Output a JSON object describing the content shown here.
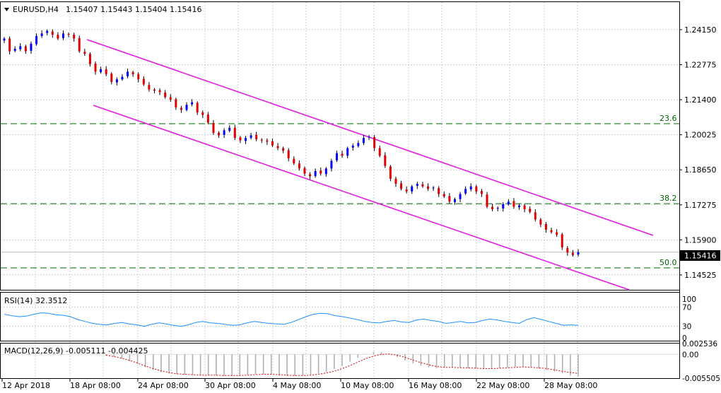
{
  "header": {
    "symbol": "EURUSD,H4",
    "ohlc": "1.15407 1.15443 1.15404 1.15416"
  },
  "colors": {
    "bull": "#0000ff",
    "bear": "#e00000",
    "wick": "#000000",
    "channel": "#e020e0",
    "fib": "#006400",
    "grid": "#c9cfd6",
    "rsi": "#1e90ff",
    "macd_hist": "#b0b0b0",
    "macd_signal": "#e00000",
    "price_box": "#000000"
  },
  "chart_data": [
    {
      "type": "candlestick",
      "title": "EURUSD,H4",
      "x_ticks": [
        "12 Apr 2018",
        "18 Apr 08:00",
        "24 Apr 08:00",
        "30 Apr 08:00",
        "4 May 08:00",
        "10 May 08:00",
        "16 May 08:00",
        "22 May 08:00",
        "28 May 08:00"
      ],
      "y_ticks": [
        "1.24150",
        "1.22775",
        "1.21400",
        "1.20025",
        "1.18650",
        "1.17275",
        "1.15900",
        "1.14525"
      ],
      "ylim": [
        1.1394,
        1.2523
      ],
      "last_price": "1.15416",
      "fib_levels": [
        {
          "label": "23.6",
          "value": 1.2046
        },
        {
          "label": "38.2",
          "value": 1.1732
        },
        {
          "label": "50.0",
          "value": 1.148
        }
      ],
      "close_series": [
        1.238,
        1.233,
        1.234,
        1.235,
        1.233,
        1.236,
        1.239,
        1.24,
        1.241,
        1.2395,
        1.238,
        1.24,
        1.2395,
        1.238,
        1.233,
        1.232,
        1.228,
        1.225,
        1.226,
        1.224,
        1.221,
        1.222,
        1.223,
        1.225,
        1.224,
        1.222,
        1.22,
        1.218,
        1.2175,
        1.217,
        1.215,
        1.214,
        1.211,
        1.21,
        1.212,
        1.213,
        1.209,
        1.208,
        1.205,
        1.201,
        1.2,
        1.202,
        1.203,
        1.199,
        1.198,
        1.199,
        1.2,
        1.1985,
        1.198,
        1.1975,
        1.196,
        1.195,
        1.194,
        1.191,
        1.189,
        1.187,
        1.185,
        1.184,
        1.186,
        1.185,
        1.187,
        1.19,
        1.193,
        1.192,
        1.195,
        1.196,
        1.197,
        1.199,
        1.1995,
        1.195,
        1.192,
        1.188,
        1.183,
        1.181,
        1.179,
        1.178,
        1.18,
        1.181,
        1.18,
        1.179,
        1.1795,
        1.177,
        1.176,
        1.174,
        1.175,
        1.177,
        1.179,
        1.18,
        1.178,
        1.177,
        1.172,
        1.171,
        1.1715,
        1.173,
        1.174,
        1.172,
        1.1725,
        1.171,
        1.17,
        1.167,
        1.165,
        1.163,
        1.162,
        1.161,
        1.156,
        1.154,
        1.153,
        1.1541
      ]
    },
    {
      "type": "line",
      "title": "RSI(14) 32.3512",
      "y_ticks": [
        "100",
        "70",
        "30",
        "0"
      ],
      "ylim": [
        0,
        100
      ],
      "values": [
        55,
        52,
        50,
        51,
        55,
        58,
        57,
        54,
        53,
        50,
        44,
        40,
        36,
        34,
        33,
        36,
        38,
        35,
        33,
        30,
        34,
        37,
        35,
        32,
        30,
        33,
        38,
        40,
        37,
        36,
        34,
        32,
        33,
        37,
        40,
        38,
        36,
        35,
        34,
        38,
        44,
        50,
        55,
        57,
        56,
        52,
        50,
        47,
        44,
        40,
        38,
        37,
        40,
        42,
        39,
        38,
        43,
        45,
        42,
        40,
        36,
        38,
        40,
        37,
        38,
        42,
        45,
        43,
        40,
        38,
        36,
        44,
        48,
        44,
        40,
        36,
        32,
        33,
        32
      ]
    },
    {
      "type": "bar",
      "title": "MACD(12,26,9) -0.005111 -0.004425",
      "y_ticks": [
        "0.002536",
        "0.00",
        "-0.005505"
      ],
      "ylim": [
        -0.0055,
        0.0025
      ],
      "histogram": [
        -0.0003,
        -0.0006,
        -0.001,
        -0.0016,
        -0.0022,
        -0.003,
        -0.0036,
        -0.0041,
        -0.0044,
        -0.0046,
        -0.0047,
        -0.0048,
        -0.0048,
        -0.0048,
        -0.0049,
        -0.005,
        -0.005,
        -0.0049,
        -0.0047,
        -0.0046,
        -0.0046,
        -0.0047,
        -0.0049,
        -0.005,
        -0.005,
        -0.0049,
        -0.0047,
        -0.0044,
        -0.004,
        -0.0034,
        -0.0027,
        -0.0017,
        -0.0008,
        0.0001,
        0.0006,
        0.0005,
        0.0001,
        -0.0006,
        -0.0014,
        -0.0021,
        -0.0026,
        -0.003,
        -0.0032,
        -0.0031,
        -0.003,
        -0.0031,
        -0.0032,
        -0.0033,
        -0.0034,
        -0.0033,
        -0.0032,
        -0.003,
        -0.0029,
        -0.0028,
        -0.003,
        -0.0033,
        -0.0036,
        -0.004,
        -0.0044,
        -0.0049,
        -0.0051
      ],
      "signal": [
        -0.0002,
        -0.0005,
        -0.0009,
        -0.0014,
        -0.002,
        -0.0027,
        -0.0033,
        -0.0038,
        -0.0042,
        -0.0045,
        -0.0046,
        -0.0047,
        -0.0048,
        -0.0048,
        -0.0048,
        -0.0049,
        -0.0049,
        -0.0049,
        -0.0048,
        -0.0047,
        -0.0046,
        -0.0046,
        -0.0047,
        -0.0048,
        -0.0049,
        -0.0049,
        -0.0048,
        -0.0046,
        -0.0043,
        -0.0039,
        -0.0033,
        -0.0026,
        -0.0018,
        -0.001,
        -0.0004,
        0.0,
        0.0001,
        -0.0002,
        -0.0007,
        -0.0013,
        -0.0019,
        -0.0024,
        -0.0028,
        -0.003,
        -0.003,
        -0.0031,
        -0.0031,
        -0.0032,
        -0.0033,
        -0.0033,
        -0.0032,
        -0.0031,
        -0.003,
        -0.0029,
        -0.003,
        -0.0031,
        -0.0033,
        -0.0036,
        -0.0039,
        -0.0042,
        -0.0044
      ]
    }
  ]
}
